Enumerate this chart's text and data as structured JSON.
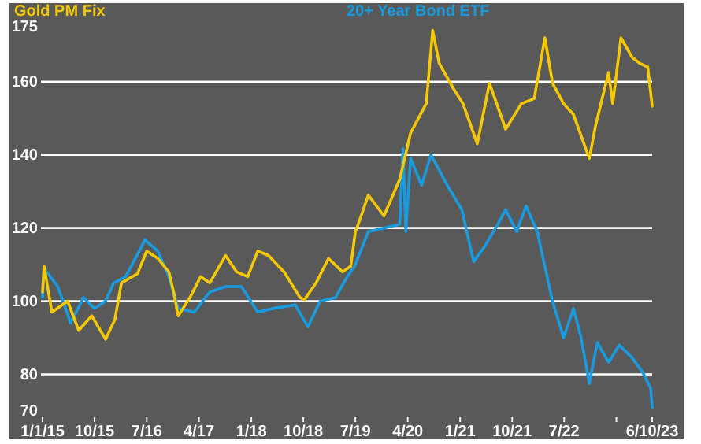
{
  "chart_data": {
    "type": "line",
    "legend": "top",
    "grid": "y",
    "line_style": "solid",
    "marker": "none",
    "xlim": [
      "2015-01-01",
      "2023-10-06"
    ],
    "xticks": [
      {
        "value": "2015-01-01",
        "label": "1/1/15"
      },
      {
        "value": "2015-10-01",
        "label": "10/15"
      },
      {
        "value": "2016-07-01",
        "label": "7/16"
      },
      {
        "value": "2017-04-01",
        "label": "4/17"
      },
      {
        "value": "2018-01-01",
        "label": "1/18"
      },
      {
        "value": "2018-10-01",
        "label": "10/18"
      },
      {
        "value": "2019-07-01",
        "label": "7/19"
      },
      {
        "value": "2020-04-01",
        "label": "4/20"
      },
      {
        "value": "2021-01-01",
        "label": "1/21"
      },
      {
        "value": "2021-10-01",
        "label": "10/21"
      },
      {
        "value": "2022-07-01",
        "label": "7/22"
      },
      {
        "value": "2023-04-01",
        "label": null
      },
      {
        "value": "2023-10-06",
        "label": "6/10/23"
      }
    ],
    "ylim": [
      70,
      175
    ],
    "yticks": [
      70,
      80,
      100,
      120,
      140,
      160,
      175
    ],
    "series": [
      {
        "name": "Gold PM Fix",
        "color": "#f5c800",
        "x": [
          "2015-01-01",
          "2015-01-09",
          "2015-02-19",
          "2015-05-13",
          "2015-07-10",
          "2015-09-16",
          "2015-11-28",
          "2016-01-16",
          "2016-02-19",
          "2016-05-13",
          "2016-07-01",
          "2016-08-28",
          "2016-10-25",
          "2016-11-19",
          "2016-12-13",
          "2017-02-13",
          "2017-04-10",
          "2017-05-28",
          "2017-08-19",
          "2017-10-16",
          "2017-12-13",
          "2018-02-04",
          "2018-04-01",
          "2018-06-22",
          "2018-09-13",
          "2018-10-07",
          "2018-12-07",
          "2019-02-10",
          "2019-04-25",
          "2019-06-07",
          "2019-07-01",
          "2019-07-16",
          "2019-09-07",
          "2019-11-28",
          "2020-02-19",
          "2020-04-16",
          "2020-07-07",
          "2020-08-10",
          "2020-09-13",
          "2020-11-28",
          "2021-01-16",
          "2021-04-01",
          "2021-06-04",
          "2021-08-28",
          "2021-11-19",
          "2022-01-25",
          "2022-03-22",
          "2022-05-01",
          "2022-06-28",
          "2022-08-19",
          "2022-11-10",
          "2022-12-13",
          "2023-02-19",
          "2023-03-13",
          "2023-04-25",
          "2023-06-22",
          "2023-08-01",
          "2023-09-13",
          "2023-10-06"
        ],
        "values": [
          102.5,
          109.6,
          97,
          100,
          92,
          96,
          89.6,
          95,
          105,
          107.5,
          113.7,
          111.7,
          108,
          102.5,
          96,
          101,
          106.7,
          105,
          112.5,
          108,
          106.7,
          113.7,
          112.5,
          108,
          101,
          100.4,
          105,
          111.7,
          108,
          109.6,
          119,
          121,
          129,
          123.3,
          133.3,
          146,
          154,
          174,
          165,
          158,
          154,
          143,
          159.6,
          147,
          154,
          155.4,
          172,
          159.6,
          154,
          151,
          139,
          148,
          162.5,
          154,
          172,
          166.7,
          165,
          164,
          153.3
        ]
      },
      {
        "name": "20+ Year Bond ETF",
        "color": "#1a9be0",
        "x": [
          "2015-01-01",
          "2015-01-09",
          "2015-03-22",
          "2015-05-28",
          "2015-08-04",
          "2015-10-01",
          "2015-11-28",
          "2016-01-10",
          "2016-03-13",
          "2016-06-22",
          "2016-08-28",
          "2016-10-25",
          "2016-12-13",
          "2017-03-07",
          "2017-05-28",
          "2017-08-19",
          "2017-11-10",
          "2018-02-04",
          "2018-04-25",
          "2018-08-19",
          "2018-10-25",
          "2018-12-28",
          "2019-03-19",
          "2019-05-19",
          "2019-06-28",
          "2019-09-07",
          "2020-02-19",
          "2020-03-07",
          "2020-03-22",
          "2020-04-16",
          "2020-06-13",
          "2020-08-01",
          "2020-10-25",
          "2021-01-10",
          "2021-03-13",
          "2021-05-10",
          "2021-07-16",
          "2021-08-28",
          "2021-10-25",
          "2021-12-13",
          "2022-02-10",
          "2022-03-04",
          "2022-05-01",
          "2022-06-28",
          "2022-08-19",
          "2022-09-28",
          "2022-11-10",
          "2022-12-22",
          "2023-02-19",
          "2023-04-16",
          "2023-06-22",
          "2023-08-19",
          "2023-09-28",
          "2023-10-06"
        ],
        "values": [
          101,
          109,
          104,
          94,
          101,
          98,
          100,
          105,
          106.7,
          116.7,
          113.7,
          106.7,
          98,
          97,
          102.5,
          104,
          104,
          97,
          98,
          99,
          93,
          100,
          101,
          106.7,
          109.6,
          119,
          121,
          141.7,
          119,
          139,
          131.7,
          140,
          131.7,
          125,
          110.8,
          115,
          120.8,
          125,
          119,
          126,
          119,
          113.7,
          100,
          90,
          98,
          90,
          77.5,
          88.7,
          83.3,
          88,
          84.6,
          80.4,
          76.2,
          71
        ]
      }
    ]
  }
}
